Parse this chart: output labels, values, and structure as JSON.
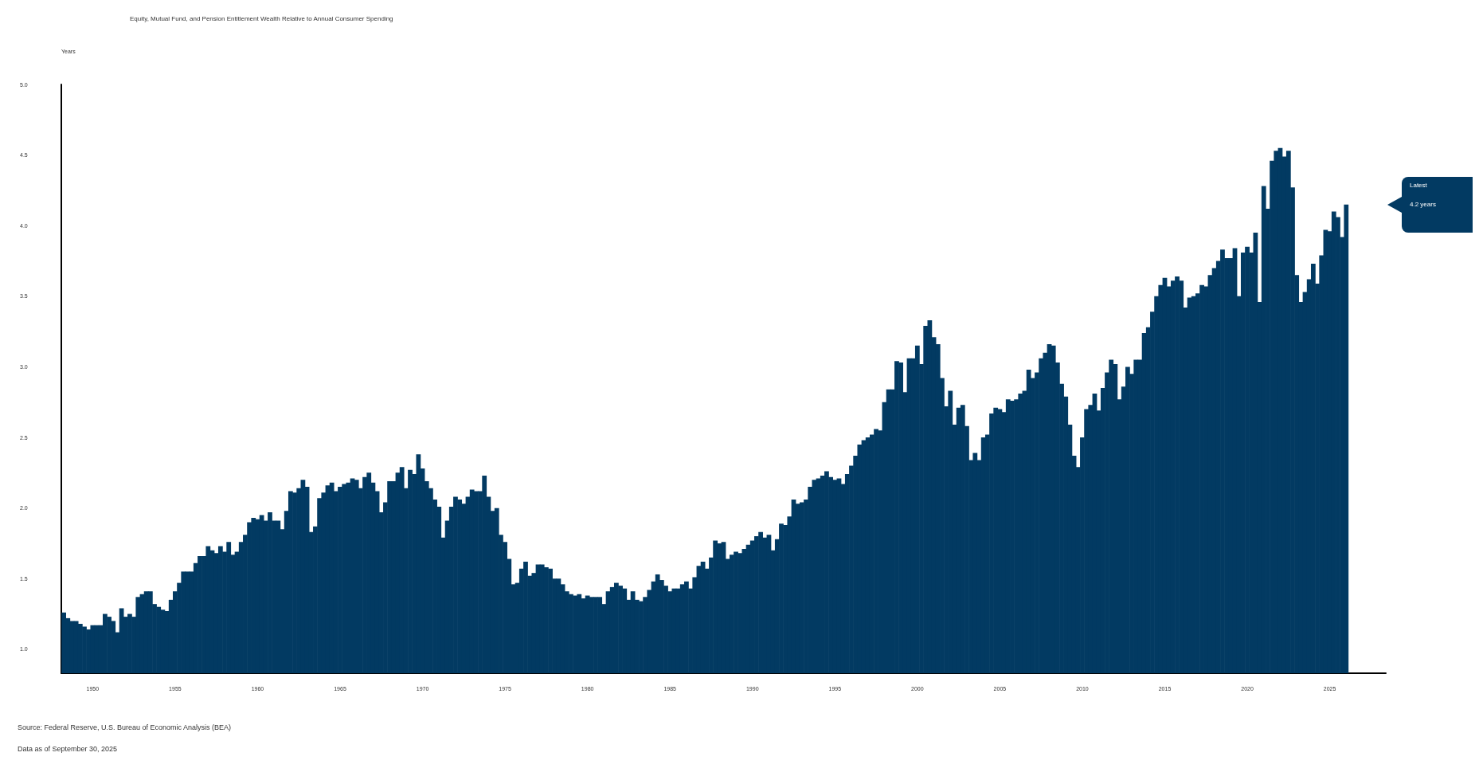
{
  "chart_data": {
    "type": "bar",
    "title": "Equity, Mutual Fund, and Pension Entitlement Wealth Relative to Annual Consumer Spending",
    "ylabel": "Years",
    "color": "#023a62",
    "x": [
      1948.25,
      1948.5,
      1948.75,
      1949,
      1949.25,
      1949.5,
      1949.75,
      1950,
      1950.25,
      1950.5,
      1950.75,
      1951,
      1951.25,
      1951.5,
      1951.75,
      1952,
      1952.25,
      1952.5,
      1952.75,
      1953,
      1953.25,
      1953.5,
      1953.75,
      1954,
      1954.25,
      1954.5,
      1954.75,
      1955,
      1955.25,
      1955.5,
      1955.75,
      1956,
      1956.25,
      1956.5,
      1956.75,
      1957,
      1957.25,
      1957.5,
      1957.75,
      1958,
      1958.25,
      1958.5,
      1958.75,
      1959,
      1959.25,
      1959.5,
      1959.75,
      1960,
      1960.25,
      1960.5,
      1960.75,
      1961,
      1961.25,
      1961.5,
      1961.75,
      1962,
      1962.25,
      1962.5,
      1962.75,
      1963,
      1963.25,
      1963.5,
      1963.75,
      1964,
      1964.25,
      1964.5,
      1964.75,
      1965,
      1965.25,
      1965.5,
      1965.75,
      1966,
      1966.25,
      1966.5,
      1966.75,
      1967,
      1967.25,
      1967.5,
      1967.75,
      1968,
      1968.25,
      1968.5,
      1968.75,
      1969,
      1969.25,
      1969.5,
      1969.75,
      1970,
      1970.25,
      1970.5,
      1970.75,
      1971,
      1971.25,
      1971.5,
      1971.75,
      1972,
      1972.25,
      1972.5,
      1972.75,
      1973,
      1973.25,
      1973.5,
      1973.75,
      1974,
      1974.25,
      1974.5,
      1974.75,
      1975,
      1975.25,
      1975.5,
      1975.75,
      1976,
      1976.25,
      1976.5,
      1976.75,
      1977,
      1977.25,
      1977.5,
      1977.75,
      1978,
      1978.25,
      1978.5,
      1978.75,
      1979,
      1979.25,
      1979.5,
      1979.75,
      1980,
      1980.25,
      1980.5,
      1980.75,
      1981,
      1981.25,
      1981.5,
      1981.75,
      1982,
      1982.25,
      1982.5,
      1982.75,
      1983,
      1983.25,
      1983.5,
      1983.75,
      1984,
      1984.25,
      1984.5,
      1984.75,
      1985,
      1985.25,
      1985.5,
      1985.75,
      1986,
      1986.25,
      1986.5,
      1986.75,
      1987,
      1987.25,
      1987.5,
      1987.75,
      1988,
      1988.25,
      1988.5,
      1988.75,
      1989,
      1989.25,
      1989.5,
      1989.75,
      1990,
      1990.25,
      1990.5,
      1990.75,
      1991,
      1991.25,
      1991.5,
      1991.75,
      1992,
      1992.25,
      1992.5,
      1992.75,
      1993,
      1993.25,
      1993.5,
      1993.75,
      1994,
      1994.25,
      1994.5,
      1994.75,
      1995,
      1995.25,
      1995.5,
      1995.75,
      1996,
      1996.25,
      1996.5,
      1996.75,
      1997,
      1997.25,
      1997.5,
      1997.75,
      1998,
      1998.25,
      1998.5,
      1998.75,
      1999,
      1999.25,
      1999.5,
      1999.75,
      2000,
      2000.25,
      2000.5,
      2000.75,
      2001,
      2001.25,
      2001.5,
      2001.75,
      2002,
      2002.25,
      2002.5,
      2002.75,
      2003,
      2003.25,
      2003.5,
      2003.75,
      2004,
      2004.25,
      2004.5,
      2004.75,
      2005,
      2005.25,
      2005.5,
      2005.75,
      2006,
      2006.25,
      2006.5,
      2006.75,
      2007,
      2007.25,
      2007.5,
      2007.75,
      2008,
      2008.25,
      2008.5,
      2008.75,
      2009,
      2009.25,
      2009.5,
      2009.75,
      2010,
      2010.25,
      2010.5,
      2010.75,
      2011,
      2011.25,
      2011.5,
      2011.75,
      2012,
      2012.25,
      2012.5,
      2012.75,
      2013,
      2013.25,
      2013.5,
      2013.75,
      2014,
      2014.25,
      2014.5,
      2014.75,
      2015,
      2015.25,
      2015.5,
      2015.75,
      2016,
      2016.25,
      2016.5,
      2016.75,
      2017,
      2017.25,
      2017.5,
      2017.75,
      2018,
      2018.25,
      2018.5,
      2018.75,
      2019,
      2019.25,
      2019.5,
      2019.75,
      2020,
      2020.25,
      2020.5,
      2020.75,
      2021,
      2021.25,
      2021.5,
      2021.75,
      2022,
      2022.25,
      2022.5,
      2022.75,
      2023,
      2023.25,
      2023.5,
      2023.75,
      2024,
      2024.25,
      2024.5,
      2024.75,
      2025,
      2025.25,
      2025.5,
      2025.75,
      2026
    ],
    "values": [
      1.26,
      1.22,
      1.2,
      1.2,
      1.18,
      1.16,
      1.14,
      1.17,
      1.17,
      1.17,
      1.25,
      1.23,
      1.2,
      1.12,
      1.29,
      1.23,
      1.25,
      1.23,
      1.37,
      1.39,
      1.41,
      1.41,
      1.32,
      1.3,
      1.28,
      1.27,
      1.35,
      1.41,
      1.47,
      1.55,
      1.55,
      1.55,
      1.61,
      1.66,
      1.66,
      1.73,
      1.7,
      1.68,
      1.73,
      1.69,
      1.76,
      1.67,
      1.69,
      1.76,
      1.81,
      1.9,
      1.93,
      1.92,
      1.95,
      1.91,
      1.97,
      1.91,
      1.91,
      1.85,
      1.98,
      2.12,
      2.11,
      2.14,
      2.2,
      2.15,
      1.83,
      1.87,
      2.07,
      2.11,
      2.16,
      2.18,
      2.12,
      2.15,
      2.17,
      2.18,
      2.21,
      2.2,
      2.14,
      2.22,
      2.25,
      2.18,
      2.12,
      1.97,
      2.04,
      2.19,
      2.19,
      2.25,
      2.29,
      2.14,
      2.27,
      2.24,
      2.38,
      2.28,
      2.19,
      2.14,
      2.06,
      2.01,
      1.79,
      1.91,
      2.01,
      2.08,
      2.06,
      2.03,
      2.08,
      2.13,
      2.12,
      2.12,
      2.23,
      2.08,
      1.98,
      2.0,
      1.81,
      1.76,
      1.64,
      1.46,
      1.47,
      1.57,
      1.62,
      1.52,
      1.54,
      1.6,
      1.6,
      1.58,
      1.57,
      1.5,
      1.5,
      1.46,
      1.41,
      1.39,
      1.38,
      1.39,
      1.36,
      1.38,
      1.37,
      1.37,
      1.37,
      1.32,
      1.41,
      1.44,
      1.47,
      1.45,
      1.43,
      1.35,
      1.41,
      1.35,
      1.34,
      1.37,
      1.42,
      1.48,
      1.53,
      1.49,
      1.45,
      1.41,
      1.43,
      1.43,
      1.46,
      1.48,
      1.43,
      1.51,
      1.59,
      1.62,
      1.57,
      1.65,
      1.77,
      1.75,
      1.76,
      1.64,
      1.67,
      1.69,
      1.68,
      1.71,
      1.74,
      1.77,
      1.8,
      1.83,
      1.79,
      1.81,
      1.7,
      1.78,
      1.89,
      1.88,
      1.94,
      2.06,
      2.03,
      2.04,
      2.06,
      2.15,
      2.2,
      2.21,
      2.23,
      2.26,
      2.22,
      2.2,
      2.21,
      2.17,
      2.24,
      2.3,
      2.37,
      2.45,
      2.48,
      2.5,
      2.52,
      2.56,
      2.55,
      2.75,
      2.84,
      2.84,
      3.04,
      3.03,
      2.82,
      3.06,
      3.06,
      3.15,
      3.02,
      3.29,
      3.33,
      3.21,
      3.16,
      2.92,
      2.72,
      2.83,
      2.59,
      2.71,
      2.73,
      2.58,
      2.34,
      2.39,
      2.34,
      2.5,
      2.52,
      2.67,
      2.71,
      2.7,
      2.68,
      2.77,
      2.76,
      2.77,
      2.81,
      2.83,
      2.98,
      2.92,
      2.96,
      3.06,
      3.1,
      3.16,
      3.15,
      3.03,
      2.88,
      2.79,
      2.59,
      2.37,
      2.29,
      2.5,
      2.7,
      2.73,
      2.81,
      2.69,
      2.85,
      2.96,
      3.05,
      3.02,
      2.77,
      2.86,
      3.0,
      2.95,
      3.05,
      3.05,
      3.24,
      3.28,
      3.39,
      3.5,
      3.58,
      3.63,
      3.57,
      3.61,
      3.64,
      3.61,
      3.42,
      3.49,
      3.5,
      3.52,
      3.58,
      3.57,
      3.65,
      3.7,
      3.75,
      3.83,
      3.77,
      3.77,
      3.84,
      3.5,
      3.81,
      3.85,
      3.81,
      3.95,
      3.46,
      4.28,
      4.12,
      4.46,
      4.53,
      4.55,
      4.49,
      4.53,
      4.27,
      3.65,
      3.46,
      3.53,
      3.62,
      3.73,
      3.59,
      3.79,
      3.97,
      3.96,
      4.1,
      4.06,
      3.92,
      4.15
    ],
    "xlim": [
      1948.1,
      2028.4
    ],
    "xticks": [
      1950,
      1955,
      1960,
      1965,
      1970,
      1975,
      1980,
      1985,
      1990,
      1995,
      2000,
      2005,
      2010,
      2015,
      2020,
      2025
    ],
    "ylim": [
      0.83,
      5.0
    ],
    "yticks": [
      {
        "value": 1,
        "label": "1.0"
      },
      {
        "value": 1.5,
        "label": "1.5"
      },
      {
        "value": 2,
        "label": "2.0"
      },
      {
        "value": 2.5,
        "label": "2.5"
      },
      {
        "value": 3,
        "label": "3.0"
      },
      {
        "value": 3.5,
        "label": "3.5"
      },
      {
        "value": 4,
        "label": "4.0"
      },
      {
        "value": 4.5,
        "label": "4.5"
      },
      {
        "value": 5,
        "label": "5.0"
      }
    ],
    "grid": false,
    "annotations": [
      "Latest",
      "4.2 years",
      "Source: Federal Reserve, U.S. Bureau of Economic Analysis (BEA)",
      "Data as of September 30, 2025"
    ]
  }
}
